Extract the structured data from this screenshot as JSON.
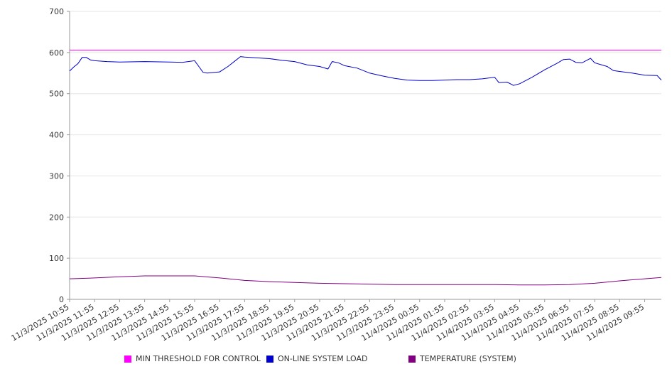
{
  "chart_data": {
    "type": "line",
    "title": "",
    "xlabel": "",
    "ylabel": "",
    "ylim": [
      0,
      700
    ],
    "y_ticks": [
      0,
      100,
      200,
      300,
      400,
      500,
      600,
      700
    ],
    "x_ticks": [
      "11/3/2025 10:55",
      "11/3/2025 11:55",
      "11/3/2025 12:55",
      "11/3/2025 13:55",
      "11/3/2025 14:55",
      "11/3/2025 15:55",
      "11/3/2025 16:55",
      "11/3/2025 17:55",
      "11/3/2025 18:55",
      "11/3/2025 19:55",
      "11/3/2025 20:55",
      "11/3/2025 21:55",
      "11/3/2025 22:55",
      "11/3/2025 23:55",
      "11/4/2025 00:55",
      "11/4/2025 01:55",
      "11/4/2025 02:55",
      "11/4/2025 03:55",
      "11/4/2025 04:55",
      "11/4/2025 05:55",
      "11/4/2025 06:55",
      "11/4/2025 07:55",
      "11/4/2025 08:55",
      "11/4/2025 09:55"
    ],
    "x_range": [
      "11/3/2025 10:55",
      "11/4/2025 10:35"
    ],
    "grid": "horizontal",
    "legend_position": "bottom",
    "series": [
      {
        "name": "MIN THRESHOLD FOR CONTROL",
        "color": "#ff00ff",
        "points": [
          [
            "11/3/2025 10:55",
            606
          ],
          [
            "11/4/2025 10:35",
            606
          ]
        ]
      },
      {
        "name": "ON-LINE SYSTEM LOAD",
        "color": "#0000cc",
        "points": [
          [
            "11/3/2025 10:55",
            555
          ],
          [
            "11/3/2025 11:05",
            565
          ],
          [
            "11/3/2025 11:15",
            573
          ],
          [
            "11/3/2025 11:25",
            588
          ],
          [
            "11/3/2025 11:35",
            588
          ],
          [
            "11/3/2025 11:45",
            582
          ],
          [
            "11/3/2025 11:55",
            580
          ],
          [
            "11/3/2025 12:25",
            578
          ],
          [
            "11/3/2025 12:55",
            577
          ],
          [
            "11/3/2025 13:55",
            578
          ],
          [
            "11/3/2025 14:55",
            577
          ],
          [
            "11/3/2025 15:25",
            576
          ],
          [
            "11/3/2025 15:55",
            580
          ],
          [
            "11/3/2025 16:05",
            566
          ],
          [
            "11/3/2025 16:15",
            552
          ],
          [
            "11/3/2025 16:25",
            550
          ],
          [
            "11/3/2025 16:55",
            553
          ],
          [
            "11/3/2025 17:15",
            566
          ],
          [
            "11/3/2025 17:35",
            582
          ],
          [
            "11/3/2025 17:45",
            590
          ],
          [
            "11/3/2025 17:55",
            589
          ],
          [
            "11/3/2025 18:25",
            587
          ],
          [
            "11/3/2025 18:55",
            585
          ],
          [
            "11/3/2025 19:25",
            581
          ],
          [
            "11/3/2025 19:55",
            578
          ],
          [
            "11/3/2025 20:25",
            570
          ],
          [
            "11/3/2025 20:55",
            566
          ],
          [
            "11/3/2025 21:15",
            560
          ],
          [
            "11/3/2025 21:25",
            578
          ],
          [
            "11/3/2025 21:40",
            575
          ],
          [
            "11/3/2025 21:55",
            568
          ],
          [
            "11/3/2025 22:25",
            562
          ],
          [
            "11/3/2025 22:55",
            550
          ],
          [
            "11/3/2025 23:25",
            543
          ],
          [
            "11/3/2025 23:55",
            537
          ],
          [
            "11/4/2025 00:25",
            533
          ],
          [
            "11/4/2025 00:55",
            532
          ],
          [
            "11/4/2025 01:25",
            532
          ],
          [
            "11/4/2025 01:55",
            533
          ],
          [
            "11/4/2025 02:25",
            534
          ],
          [
            "11/4/2025 02:55",
            534
          ],
          [
            "11/4/2025 03:25",
            536
          ],
          [
            "11/4/2025 03:55",
            540
          ],
          [
            "11/4/2025 04:05",
            527
          ],
          [
            "11/4/2025 04:25",
            528
          ],
          [
            "11/4/2025 04:40",
            520
          ],
          [
            "11/4/2025 04:55",
            524
          ],
          [
            "11/4/2025 05:25",
            540
          ],
          [
            "11/4/2025 05:55",
            558
          ],
          [
            "11/4/2025 06:25",
            574
          ],
          [
            "11/4/2025 06:40",
            583
          ],
          [
            "11/4/2025 06:55",
            584
          ],
          [
            "11/4/2025 07:10",
            576
          ],
          [
            "11/4/2025 07:25",
            575
          ],
          [
            "11/4/2025 07:45",
            586
          ],
          [
            "11/4/2025 07:55",
            575
          ],
          [
            "11/4/2025 08:25",
            566
          ],
          [
            "11/4/2025 08:40",
            556
          ],
          [
            "11/4/2025 08:55",
            554
          ],
          [
            "11/4/2025 09:25",
            550
          ],
          [
            "11/4/2025 09:55",
            545
          ],
          [
            "11/4/2025 10:25",
            544
          ],
          [
            "11/4/2025 10:35",
            533
          ]
        ]
      },
      {
        "name": "TEMPERATURE (SYSTEM)",
        "color": "#800080",
        "points": [
          [
            "11/3/2025 10:55",
            50
          ],
          [
            "11/3/2025 11:55",
            52
          ],
          [
            "11/3/2025 12:55",
            55
          ],
          [
            "11/3/2025 13:55",
            57
          ],
          [
            "11/3/2025 14:55",
            57
          ],
          [
            "11/3/2025 15:55",
            57
          ],
          [
            "11/3/2025 16:55",
            52
          ],
          [
            "11/3/2025 17:55",
            46
          ],
          [
            "11/3/2025 18:55",
            43
          ],
          [
            "11/3/2025 19:55",
            41
          ],
          [
            "11/3/2025 20:55",
            39
          ],
          [
            "11/3/2025 21:55",
            38
          ],
          [
            "11/3/2025 22:55",
            37
          ],
          [
            "11/3/2025 23:55",
            36
          ],
          [
            "11/4/2025 00:55",
            36
          ],
          [
            "11/4/2025 01:55",
            36
          ],
          [
            "11/4/2025 02:55",
            36
          ],
          [
            "11/4/2025 03:55",
            36
          ],
          [
            "11/4/2025 04:55",
            35
          ],
          [
            "11/4/2025 05:55",
            35
          ],
          [
            "11/4/2025 06:55",
            36
          ],
          [
            "11/4/2025 07:55",
            39
          ],
          [
            "11/4/2025 08:55",
            45
          ],
          [
            "11/4/2025 09:55",
            50
          ],
          [
            "11/4/2025 10:35",
            53
          ]
        ]
      }
    ]
  }
}
